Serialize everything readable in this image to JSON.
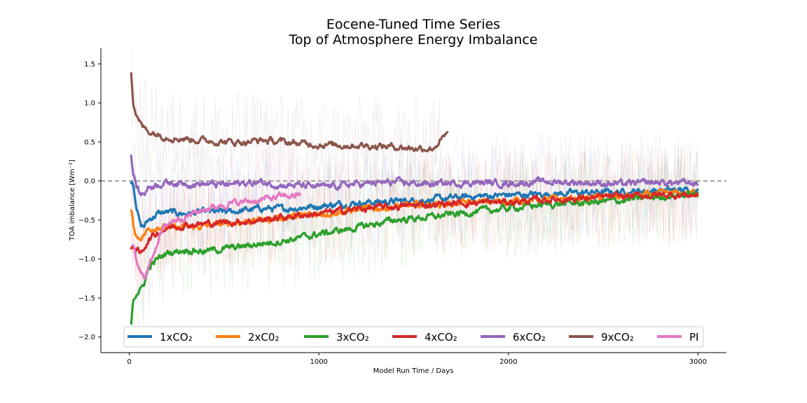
{
  "chart_data": {
    "type": "line",
    "title": "Eocene-Tuned Time Series",
    "subtitle": "Top of Atmosphere Energy Imbalance",
    "xlabel": "Model Run Time / Days",
    "ylabel": "TOA imbalance [Wm⁻²]",
    "xlim": [
      -150,
      3150
    ],
    "ylim": [
      -2.2,
      1.7
    ],
    "xticks": [
      0,
      1000,
      2000,
      3000
    ],
    "xtick_labels": [
      "0",
      "1000",
      "2000",
      "3000"
    ],
    "yticks": [
      -2.0,
      -1.5,
      -1.0,
      -0.5,
      0.0,
      0.5,
      1.0,
      1.5
    ],
    "ytick_labels": [
      "−2.0",
      "−1.5",
      "−1.0",
      "−0.5",
      "0.0",
      "0.5",
      "1.0",
      "1.5"
    ],
    "reference_line": {
      "y": 0.0,
      "style": "dashed",
      "color": "#808080"
    },
    "grid": false,
    "legend_position": "bottom-center",
    "series": [
      {
        "name": "1xCO₂",
        "color": "#1f77b4",
        "x": [
          10,
          20,
          40,
          60,
          80,
          100,
          150,
          200,
          300,
          400,
          500,
          600,
          700,
          800,
          900,
          1000,
          1200,
          1400,
          1600,
          1800,
          2000,
          2200,
          2400,
          2600,
          2800,
          3000
        ],
        "y": [
          0.0,
          0.0,
          -0.35,
          -0.58,
          -0.58,
          -0.5,
          -0.42,
          -0.4,
          -0.42,
          -0.4,
          -0.4,
          -0.38,
          -0.35,
          -0.36,
          -0.34,
          -0.32,
          -0.28,
          -0.26,
          -0.24,
          -0.2,
          -0.18,
          -0.17,
          -0.15,
          -0.14,
          -0.12,
          -0.12
        ]
      },
      {
        "name": "2xC0₂",
        "color": "#ff7f0e",
        "x": [
          10,
          20,
          40,
          60,
          80,
          100,
          150,
          200,
          300,
          400,
          500,
          600,
          700,
          800,
          900,
          1000,
          1200,
          1400,
          1600,
          1800,
          2000,
          2200,
          2400,
          2600,
          2800,
          3000
        ],
        "y": [
          -0.35,
          -0.55,
          -0.72,
          -0.72,
          -0.68,
          -0.62,
          -0.58,
          -0.6,
          -0.6,
          -0.58,
          -0.55,
          -0.52,
          -0.5,
          -0.47,
          -0.45,
          -0.42,
          -0.37,
          -0.33,
          -0.3,
          -0.28,
          -0.26,
          -0.24,
          -0.22,
          -0.2,
          -0.17,
          -0.15
        ]
      },
      {
        "name": "3xCO₂",
        "color": "#2ca02c",
        "x": [
          10,
          20,
          40,
          60,
          80,
          100,
          150,
          200,
          300,
          400,
          500,
          600,
          700,
          800,
          900,
          1000,
          1200,
          1400,
          1600,
          1800,
          2000,
          2200,
          2400,
          2600,
          2800,
          3000
        ],
        "y": [
          -1.8,
          -1.5,
          -1.42,
          -1.4,
          -1.3,
          -1.12,
          -1.0,
          -0.92,
          -0.88,
          -0.9,
          -0.87,
          -0.84,
          -0.8,
          -0.77,
          -0.73,
          -0.68,
          -0.6,
          -0.5,
          -0.46,
          -0.4,
          -0.35,
          -0.3,
          -0.28,
          -0.25,
          -0.2,
          -0.17
        ]
      },
      {
        "name": "4xCO₂",
        "color": "#d62728",
        "x": [
          10,
          20,
          40,
          60,
          80,
          100,
          150,
          200,
          300,
          400,
          500,
          600,
          700,
          800,
          900,
          1000,
          1200,
          1400,
          1600,
          1800,
          2000,
          2200,
          2400,
          2600,
          2800,
          3000
        ],
        "y": [
          -0.88,
          -0.82,
          -0.88,
          -0.95,
          -0.85,
          -0.75,
          -0.66,
          -0.6,
          -0.56,
          -0.55,
          -0.53,
          -0.52,
          -0.5,
          -0.47,
          -0.44,
          -0.42,
          -0.36,
          -0.33,
          -0.3,
          -0.28,
          -0.27,
          -0.24,
          -0.22,
          -0.2,
          -0.18,
          -0.18
        ]
      },
      {
        "name": "6xCO₂",
        "color": "#9467bd",
        "x": [
          10,
          20,
          40,
          60,
          80,
          100,
          150,
          200,
          300,
          400,
          500,
          600,
          700,
          800,
          900,
          1000,
          1200,
          1400,
          1600,
          1800,
          2000,
          2200,
          2400,
          2600,
          2800,
          3000
        ],
        "y": [
          0.32,
          0.1,
          -0.08,
          -0.18,
          -0.15,
          -0.08,
          -0.04,
          -0.02,
          -0.03,
          -0.04,
          -0.05,
          -0.03,
          -0.02,
          -0.05,
          -0.06,
          -0.08,
          -0.04,
          -0.02,
          -0.04,
          -0.02,
          -0.03,
          -0.01,
          -0.02,
          -0.04,
          -0.02,
          -0.03
        ]
      },
      {
        "name": "9xCO₂",
        "color": "#8c564b",
        "x": [
          10,
          20,
          40,
          60,
          80,
          100,
          150,
          200,
          250,
          300,
          400,
          500,
          600,
          700,
          800,
          900,
          1000,
          1100,
          1200,
          1300,
          1400,
          1500,
          1600,
          1680
        ],
        "y": [
          1.4,
          1.0,
          0.82,
          0.72,
          0.68,
          0.64,
          0.6,
          0.57,
          0.55,
          0.54,
          0.52,
          0.5,
          0.5,
          0.52,
          0.5,
          0.48,
          0.47,
          0.46,
          0.46,
          0.45,
          0.44,
          0.42,
          0.42,
          0.6
        ]
      },
      {
        "name": "PI",
        "color": "#e377c2",
        "x": [
          20,
          40,
          60,
          80,
          100,
          130,
          160,
          200,
          250,
          300,
          350,
          400,
          450,
          500,
          600,
          700,
          800,
          900
        ],
        "y": [
          -0.85,
          -1.05,
          -1.2,
          -1.22,
          -1.12,
          -0.9,
          -0.7,
          -0.55,
          -0.48,
          -0.45,
          -0.4,
          -0.36,
          -0.33,
          -0.3,
          -0.27,
          -0.24,
          -0.2,
          -0.18
        ]
      }
    ]
  }
}
